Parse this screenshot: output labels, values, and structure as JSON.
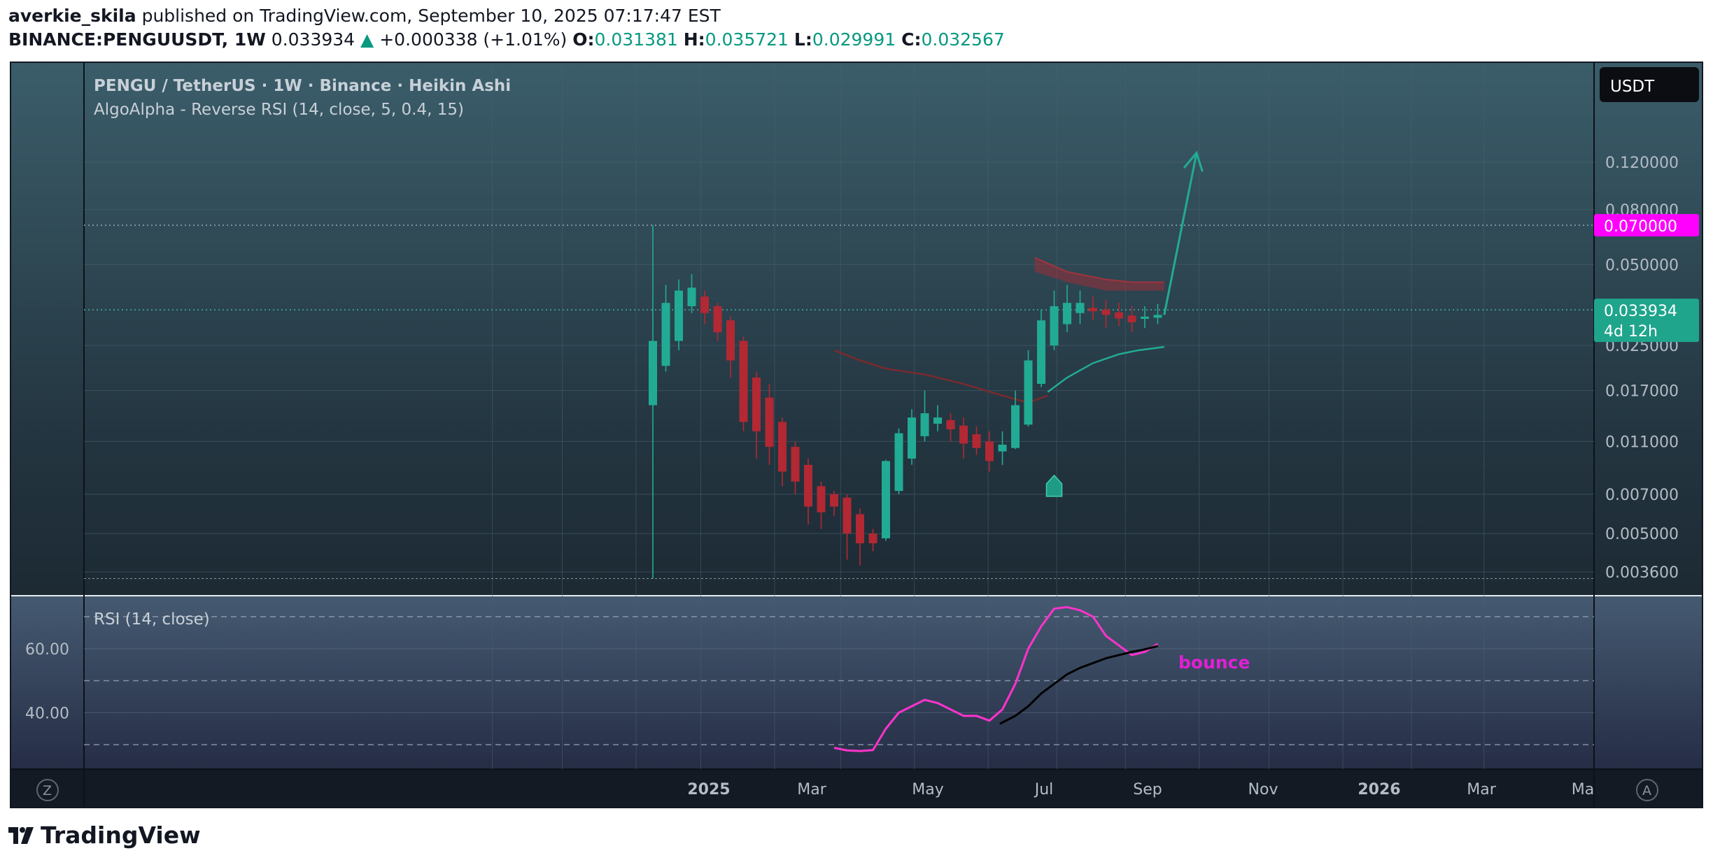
{
  "header": {
    "user": "averkie_skila",
    "published": "published on TradingView.com, September 10, 2025 07:17:47 EST",
    "symbol": "BINANCE:PENGUUSDT, 1W",
    "last": "0.033934",
    "change": "+0.000338 (+1.01%)",
    "o_label": "O:",
    "o": "0.031381",
    "h_label": "H:",
    "h": "0.035721",
    "l_label": "L:",
    "l": "0.029991",
    "c_label": "C:",
    "c": "0.032567"
  },
  "legend": {
    "title": "PENGU / TetherUS · 1W · Binance · Heikin Ashi",
    "indicator": "AlgoAlpha - Reverse RSI (14, close, 5, 0.4, 15)",
    "rsi_title": "RSI (14, close)"
  },
  "currency_button": "USDT",
  "price_labels": {
    "target": "0.070000",
    "last": "0.033934",
    "countdown": "4d 12h"
  },
  "annotation": "bounce",
  "corner_left": "Z",
  "corner_right": "A",
  "brand": "TradingView",
  "colors": {
    "bg_top": "#3b5d6a",
    "bg_bottom": "#141b24",
    "up": "#22ab94",
    "down": "#b22833",
    "rsi": "#ff33cc",
    "rsi_ma": "#000000",
    "target_label": "#ff00ff"
  },
  "chart_data": [
    {
      "type": "candlestick",
      "title": "PENGU / TetherUS · 1W · Binance · Heikin Ashi",
      "y_scale": "log",
      "ylim": [
        0.0033,
        0.16
      ],
      "y_ticks": [
        "0.120000",
        "0.080000",
        "0.050000",
        "0.025000",
        "0.017000",
        "0.011000",
        "0.007000",
        "0.005000",
        "0.003600"
      ],
      "x_ticks": [
        "2025",
        "Mar",
        "May",
        "Jul",
        "Sep",
        "Nov",
        "2026",
        "Mar",
        "Ma"
      ],
      "candles": [
        {
          "t": 0,
          "o": 0.015,
          "c": 0.026,
          "h": 0.07,
          "l": 0.0034
        },
        {
          "t": 1,
          "o": 0.021,
          "c": 0.036,
          "h": 0.042,
          "l": 0.02
        },
        {
          "t": 2,
          "o": 0.026,
          "c": 0.04,
          "h": 0.044,
          "l": 0.024
        },
        {
          "t": 3,
          "o": 0.035,
          "c": 0.041,
          "h": 0.046,
          "l": 0.033
        },
        {
          "t": 4,
          "o": 0.038,
          "c": 0.033,
          "h": 0.04,
          "l": 0.03
        },
        {
          "t": 5,
          "o": 0.035,
          "c": 0.028,
          "h": 0.036,
          "l": 0.026
        },
        {
          "t": 6,
          "o": 0.031,
          "c": 0.022,
          "h": 0.032,
          "l": 0.019
        },
        {
          "t": 7,
          "o": 0.026,
          "c": 0.013,
          "h": 0.027,
          "l": 0.012
        },
        {
          "t": 8,
          "o": 0.019,
          "c": 0.012,
          "h": 0.02,
          "l": 0.0095
        },
        {
          "t": 9,
          "o": 0.016,
          "c": 0.0105,
          "h": 0.018,
          "l": 0.009
        },
        {
          "t": 10,
          "o": 0.013,
          "c": 0.0085,
          "h": 0.0135,
          "l": 0.0075
        },
        {
          "t": 11,
          "o": 0.0105,
          "c": 0.0078,
          "h": 0.011,
          "l": 0.007
        },
        {
          "t": 12,
          "o": 0.009,
          "c": 0.0063,
          "h": 0.0095,
          "l": 0.0054
        },
        {
          "t": 13,
          "o": 0.0075,
          "c": 0.006,
          "h": 0.0078,
          "l": 0.0052
        },
        {
          "t": 14,
          "o": 0.007,
          "c": 0.0063,
          "h": 0.0072,
          "l": 0.0058
        },
        {
          "t": 15,
          "o": 0.0068,
          "c": 0.005,
          "h": 0.007,
          "l": 0.004
        },
        {
          "t": 16,
          "o": 0.0059,
          "c": 0.0046,
          "h": 0.0062,
          "l": 0.0038
        },
        {
          "t": 17,
          "o": 0.005,
          "c": 0.0046,
          "h": 0.0052,
          "l": 0.0043
        },
        {
          "t": 18,
          "o": 0.0048,
          "c": 0.0093,
          "h": 0.0094,
          "l": 0.0047
        },
        {
          "t": 19,
          "o": 0.0072,
          "c": 0.0118,
          "h": 0.0123,
          "l": 0.007
        },
        {
          "t": 20,
          "o": 0.0095,
          "c": 0.0135,
          "h": 0.0145,
          "l": 0.009
        },
        {
          "t": 21,
          "o": 0.0115,
          "c": 0.014,
          "h": 0.017,
          "l": 0.011
        },
        {
          "t": 22,
          "o": 0.0128,
          "c": 0.0135,
          "h": 0.015,
          "l": 0.012
        },
        {
          "t": 23,
          "o": 0.0132,
          "c": 0.0122,
          "h": 0.014,
          "l": 0.011
        },
        {
          "t": 24,
          "o": 0.0126,
          "c": 0.0108,
          "h": 0.0135,
          "l": 0.0095
        },
        {
          "t": 25,
          "o": 0.0117,
          "c": 0.0104,
          "h": 0.0125,
          "l": 0.0098
        },
        {
          "t": 26,
          "o": 0.011,
          "c": 0.0093,
          "h": 0.012,
          "l": 0.0085
        },
        {
          "t": 27,
          "o": 0.0101,
          "c": 0.0107,
          "h": 0.012,
          "l": 0.009
        },
        {
          "t": 28,
          "o": 0.0104,
          "c": 0.015,
          "h": 0.017,
          "l": 0.0103
        },
        {
          "t": 29,
          "o": 0.0127,
          "c": 0.022,
          "h": 0.024,
          "l": 0.0125
        },
        {
          "t": 30,
          "o": 0.018,
          "c": 0.031,
          "h": 0.034,
          "l": 0.0175
        },
        {
          "t": 31,
          "o": 0.025,
          "c": 0.035,
          "h": 0.04,
          "l": 0.024
        },
        {
          "t": 32,
          "o": 0.03,
          "c": 0.036,
          "h": 0.042,
          "l": 0.028
        },
        {
          "t": 33,
          "o": 0.033,
          "c": 0.036,
          "h": 0.04,
          "l": 0.03
        },
        {
          "t": 34,
          "o": 0.0345,
          "c": 0.0335,
          "h": 0.038,
          "l": 0.031
        },
        {
          "t": 35,
          "o": 0.034,
          "c": 0.0325,
          "h": 0.037,
          "l": 0.029
        },
        {
          "t": 36,
          "o": 0.0332,
          "c": 0.0315,
          "h": 0.036,
          "l": 0.0295
        },
        {
          "t": 37,
          "o": 0.0323,
          "c": 0.0305,
          "h": 0.035,
          "l": 0.028
        },
        {
          "t": 38,
          "o": 0.0314,
          "c": 0.032,
          "h": 0.035,
          "l": 0.029
        },
        {
          "t": 39,
          "o": 0.0317,
          "c": 0.0325,
          "h": 0.0357,
          "l": 0.03
        }
      ],
      "upper_band": [
        {
          "t": 29.5,
          "v": 0.053
        },
        {
          "t": 32,
          "v": 0.047
        },
        {
          "t": 35,
          "v": 0.044
        },
        {
          "t": 37,
          "v": 0.043
        },
        {
          "t": 39.5,
          "v": 0.043
        }
      ],
      "upper_band_lower": [
        {
          "t": 29.5,
          "v": 0.047
        },
        {
          "t": 32,
          "v": 0.043
        },
        {
          "t": 35,
          "v": 0.04
        },
        {
          "t": 37,
          "v": 0.04
        },
        {
          "t": 39.5,
          "v": 0.04
        }
      ],
      "down_line": [
        {
          "t": 14,
          "v": 0.024
        },
        {
          "t": 16,
          "v": 0.022
        },
        {
          "t": 18,
          "v": 0.0205
        },
        {
          "t": 21,
          "v": 0.0195
        },
        {
          "t": 24,
          "v": 0.018
        },
        {
          "t": 27,
          "v": 0.0163
        },
        {
          "t": 29,
          "v": 0.0153
        },
        {
          "t": 30.5,
          "v": 0.0163
        }
      ],
      "up_line": [
        {
          "t": 30.5,
          "v": 0.0168
        },
        {
          "t": 32,
          "v": 0.019
        },
        {
          "t": 34,
          "v": 0.0215
        },
        {
          "t": 36,
          "v": 0.0232
        },
        {
          "t": 37.5,
          "v": 0.024
        },
        {
          "t": 39.5,
          "v": 0.0247
        }
      ],
      "signal": {
        "t": 31,
        "v": 0.0073
      },
      "projection": [
        {
          "t": 39.5,
          "v": 0.0325
        },
        {
          "t": 42,
          "v": 0.13
        }
      ],
      "target_level": 0.07,
      "last_price": 0.033934
    },
    {
      "type": "line",
      "title": "RSI (14, close)",
      "ylim": [
        27,
        75
      ],
      "y_ticks": [
        "60.00",
        "40.00"
      ],
      "bands": [
        70,
        50,
        30
      ],
      "series": [
        {
          "values": [
            {
              "t": 14,
              "v": 29
            },
            {
              "t": 15,
              "v": 28.2
            },
            {
              "t": 16,
              "v": 28
            },
            {
              "t": 17,
              "v": 28.3
            },
            {
              "t": 18,
              "v": 35
            },
            {
              "t": 19,
              "v": 40
            },
            {
              "t": 20,
              "v": 42
            },
            {
              "t": 21,
              "v": 44
            },
            {
              "t": 22,
              "v": 43
            },
            {
              "t": 23,
              "v": 41
            },
            {
              "t": 24,
              "v": 39
            },
            {
              "t": 25,
              "v": 39
            },
            {
              "t": 26,
              "v": 37.5
            },
            {
              "t": 27,
              "v": 41
            },
            {
              "t": 28,
              "v": 49
            },
            {
              "t": 29,
              "v": 60
            },
            {
              "t": 30,
              "v": 67
            },
            {
              "t": 31,
              "v": 72.5
            },
            {
              "t": 32,
              "v": 73
            },
            {
              "t": 33,
              "v": 72
            },
            {
              "t": 34,
              "v": 70
            },
            {
              "t": 35,
              "v": 64
            },
            {
              "t": 36,
              "v": 61
            },
            {
              "t": 37,
              "v": 58
            },
            {
              "t": 38,
              "v": 59
            },
            {
              "t": 39,
              "v": 61.5
            }
          ]
        },
        {
          "values": [
            {
              "t": 26.8,
              "v": 36.5
            },
            {
              "t": 28,
              "v": 39
            },
            {
              "t": 29,
              "v": 42
            },
            {
              "t": 30,
              "v": 46
            },
            {
              "t": 31,
              "v": 49
            },
            {
              "t": 32,
              "v": 52
            },
            {
              "t": 33,
              "v": 54
            },
            {
              "t": 34,
              "v": 55.5
            },
            {
              "t": 35,
              "v": 57
            },
            {
              "t": 36,
              "v": 58
            },
            {
              "t": 37,
              "v": 59
            },
            {
              "t": 38,
              "v": 59.8
            },
            {
              "t": 39,
              "v": 60.8
            }
          ]
        }
      ]
    }
  ]
}
